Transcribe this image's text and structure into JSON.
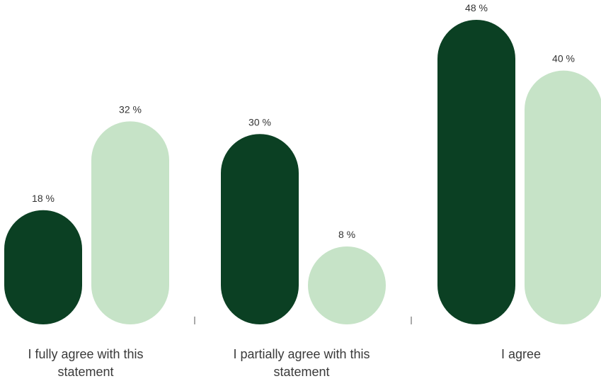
{
  "chart_data": {
    "type": "bar",
    "categories": [
      "I fully agree with this statement",
      "I partially agree with this statement",
      "I agree"
    ],
    "series": [
      {
        "values": [
          18,
          30,
          48
        ],
        "color": "#0b4023"
      },
      {
        "values": [
          32,
          8,
          40
        ],
        "color": "#c6e3c7"
      }
    ],
    "value_suffix": " %",
    "ylim": [
      0,
      48
    ],
    "grid": false,
    "legend": "none"
  }
}
